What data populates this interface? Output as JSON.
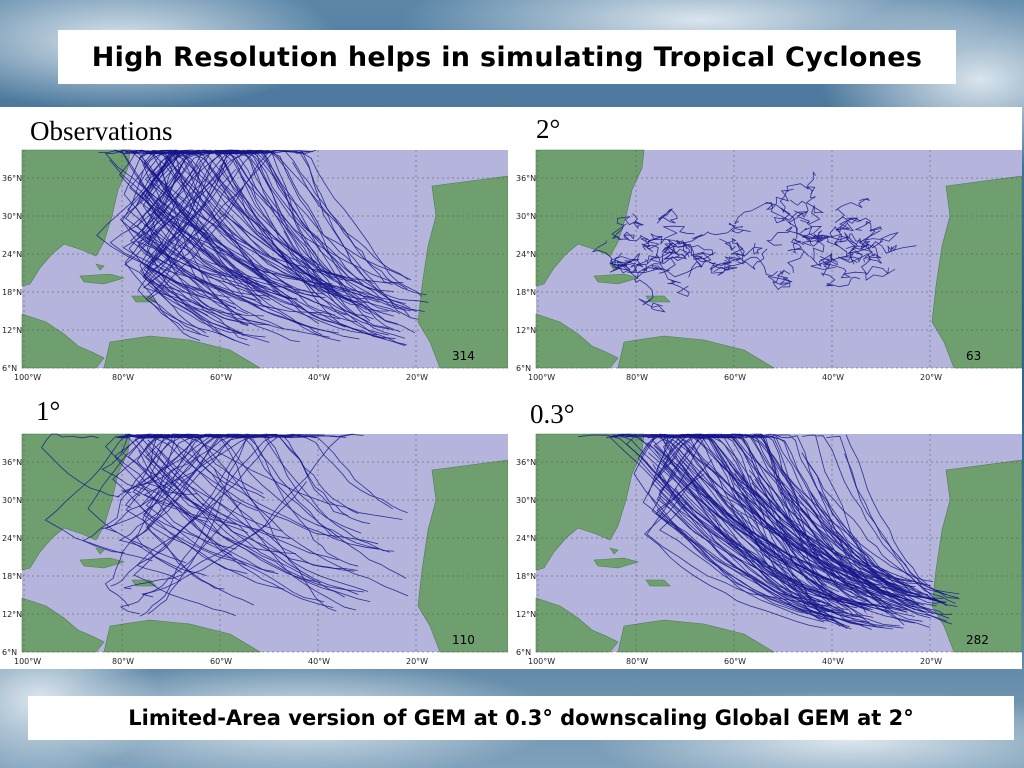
{
  "title": "High Resolution helps in simulating Tropical Cyclones",
  "footer": "Limited-Area version of GEM at 0.3°  downscaling Global GEM at 2°",
  "panels": [
    {
      "label": "Observations",
      "count": "314",
      "density": 120,
      "style": "obs"
    },
    {
      "label": "2°",
      "count": "63",
      "density": 45,
      "style": "coarse"
    },
    {
      "label": "1°",
      "count": "110",
      "density": 70,
      "style": "mid"
    },
    {
      "label": "0.3°",
      "count": "282",
      "density": 130,
      "style": "fine"
    }
  ],
  "axis": {
    "lat_labels": [
      "36°N",
      "30°N",
      "24°N",
      "18°N",
      "12°N",
      "6°N"
    ],
    "lon_labels": [
      "100°W",
      "80°W",
      "60°W",
      "40°W",
      "20°W"
    ]
  },
  "colors": {
    "ocean": "#b4b4dc",
    "land": "#6f9f6f",
    "track": "#16168a",
    "grid": "#555555"
  }
}
